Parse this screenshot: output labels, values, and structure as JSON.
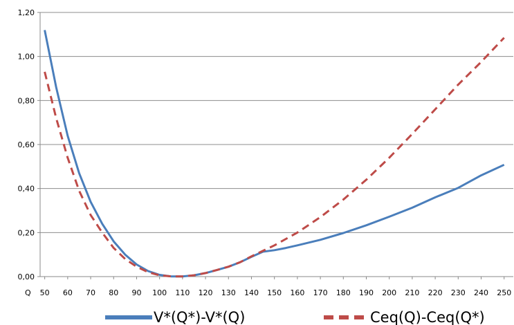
{
  "chart_data": {
    "type": "line",
    "x_label": "Q",
    "x_ticks": [
      50,
      60,
      70,
      80,
      90,
      100,
      110,
      120,
      130,
      140,
      150,
      160,
      170,
      180,
      190,
      200,
      210,
      220,
      230,
      240,
      250
    ],
    "y_ticks": [
      "0,00",
      "0,20",
      "0,40",
      "0,60",
      "0,80",
      "1,00",
      "1,20"
    ],
    "xlim": [
      48,
      254
    ],
    "ylim": [
      0,
      1.2
    ],
    "grid": "horizontal",
    "legend_position": "bottom",
    "series": [
      {
        "name": "V*(Q*)-V*(Q)",
        "color": "#4a7ebb",
        "style": "solid",
        "points": [
          [
            50,
            1.12
          ],
          [
            55,
            0.86
          ],
          [
            60,
            0.64
          ],
          [
            65,
            0.47
          ],
          [
            70,
            0.34
          ],
          [
            75,
            0.24
          ],
          [
            80,
            0.16
          ],
          [
            85,
            0.1
          ],
          [
            90,
            0.055
          ],
          [
            95,
            0.025
          ],
          [
            100,
            0.008
          ],
          [
            105,
            0.001
          ],
          [
            110,
            0.001
          ],
          [
            115,
            0.006
          ],
          [
            120,
            0.016
          ],
          [
            125,
            0.03
          ],
          [
            130,
            0.045
          ],
          [
            135,
            0.065
          ],
          [
            140,
            0.09
          ],
          [
            145,
            0.113
          ],
          [
            150,
            0.12
          ],
          [
            155,
            0.13
          ],
          [
            160,
            0.142
          ],
          [
            170,
            0.167
          ],
          [
            180,
            0.198
          ],
          [
            190,
            0.233
          ],
          [
            200,
            0.272
          ],
          [
            210,
            0.313
          ],
          [
            220,
            0.36
          ],
          [
            230,
            0.403
          ],
          [
            240,
            0.46
          ],
          [
            250,
            0.508
          ]
        ]
      },
      {
        "name": "Ceq(Q)-Ceq(Q*)",
        "color": "#be4b48",
        "style": "dashed",
        "points": [
          [
            50,
            0.93
          ],
          [
            55,
            0.72
          ],
          [
            60,
            0.54
          ],
          [
            65,
            0.39
          ],
          [
            70,
            0.28
          ],
          [
            75,
            0.2
          ],
          [
            80,
            0.13
          ],
          [
            85,
            0.08
          ],
          [
            90,
            0.045
          ],
          [
            95,
            0.02
          ],
          [
            100,
            0.006
          ],
          [
            105,
            0.001
          ],
          [
            110,
            0.001
          ],
          [
            115,
            0.006
          ],
          [
            120,
            0.016
          ],
          [
            125,
            0.03
          ],
          [
            130,
            0.045
          ],
          [
            135,
            0.065
          ],
          [
            140,
            0.092
          ],
          [
            150,
            0.142
          ],
          [
            160,
            0.2
          ],
          [
            170,
            0.27
          ],
          [
            180,
            0.35
          ],
          [
            190,
            0.44
          ],
          [
            200,
            0.54
          ],
          [
            210,
            0.648
          ],
          [
            220,
            0.76
          ],
          [
            230,
            0.872
          ],
          [
            240,
            0.975
          ],
          [
            250,
            1.085
          ]
        ]
      }
    ]
  }
}
